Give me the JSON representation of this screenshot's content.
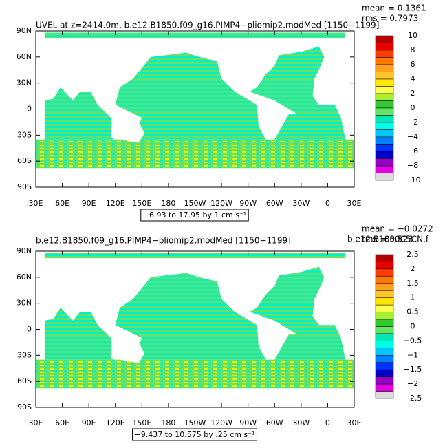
{
  "panels": [
    {
      "title": "UVEL at z=2414.0m, b.e12.B1850.f09_g16.PIMP4−pliomip2.modMed [1150−1199]",
      "mean": "mean = 0.1361",
      "rms": "rms = 0.7973",
      "lat_labels": [
        "90N",
        "60N",
        "30N",
        "0",
        "30S",
        "60S",
        "90S"
      ],
      "lon_labels": [
        "30E",
        "60E",
        "90E",
        "120E",
        "150E",
        "180",
        "150W",
        "120W",
        "90W",
        "60W",
        "30W",
        "0",
        "30E"
      ],
      "colorbar_labels": [
        "10",
        "8",
        "6",
        "4",
        "2",
        "0",
        "−2",
        "−4",
        "−6",
        "−8",
        "−10"
      ],
      "range_label": "−6.93 to 17.95 by 1 cm s⁻¹"
    },
    {
      "title": "b.e12.B1850.f09_g16.PIMP4−pliomip2.modMed [1150−1199]",
      "mean": "mean = −0.0272",
      "rms": "rms = 0.523",
      "reference": "b.e12.B1850C5CN.f",
      "lat_labels": [
        "90N",
        "60N",
        "30N",
        "0",
        "30S",
        "60S",
        "90S"
      ],
      "lon_labels": [
        "30E",
        "60E",
        "90E",
        "120E",
        "150E",
        "180",
        "150W",
        "120W",
        "90W",
        "60W",
        "30W",
        "0",
        "30E"
      ],
      "colorbar_labels": [
        "2.5",
        "2",
        "1.5",
        "1",
        "0.5",
        "0",
        "−0.5",
        "−1",
        "−1.5",
        "−2",
        "−2.5"
      ],
      "range_label": "−9.437 to 10.575 by .25 cm s⁻¹"
    }
  ]
}
